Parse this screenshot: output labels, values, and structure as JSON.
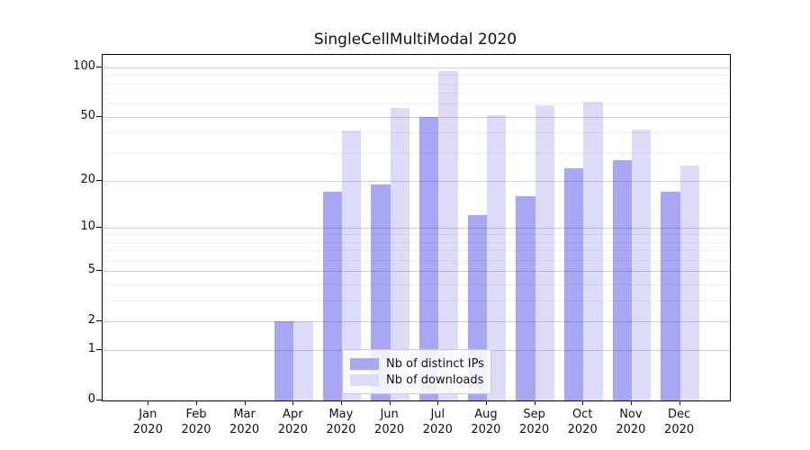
{
  "chart_data": {
    "type": "bar",
    "title": "SingleCellMultiModal 2020",
    "categories": [
      "Jan",
      "Feb",
      "Mar",
      "Apr",
      "May",
      "Jun",
      "Jul",
      "Aug",
      "Sep",
      "Oct",
      "Nov",
      "Dec"
    ],
    "category_year": "2020",
    "series": [
      {
        "name": "Nb of distinct IPs",
        "color": "#a7a7f3",
        "values": [
          0,
          0,
          0,
          2,
          17,
          19,
          50,
          12,
          16,
          24,
          27,
          17
        ]
      },
      {
        "name": "Nb of downloads",
        "color": "#dcdcf8",
        "values": [
          0,
          0,
          0,
          2,
          41,
          57,
          95,
          51,
          59,
          62,
          42,
          25
        ]
      }
    ],
    "yscale": "log1p",
    "ylim": [
      0,
      119
    ],
    "y_ticks": [
      0,
      1,
      2,
      5,
      10,
      20,
      50,
      100
    ],
    "y_minor_ticks": [
      3,
      4,
      6,
      7,
      8,
      9,
      30,
      40,
      60,
      70,
      80,
      90
    ],
    "grid": "on",
    "legend_position": "lower-center-inside"
  }
}
